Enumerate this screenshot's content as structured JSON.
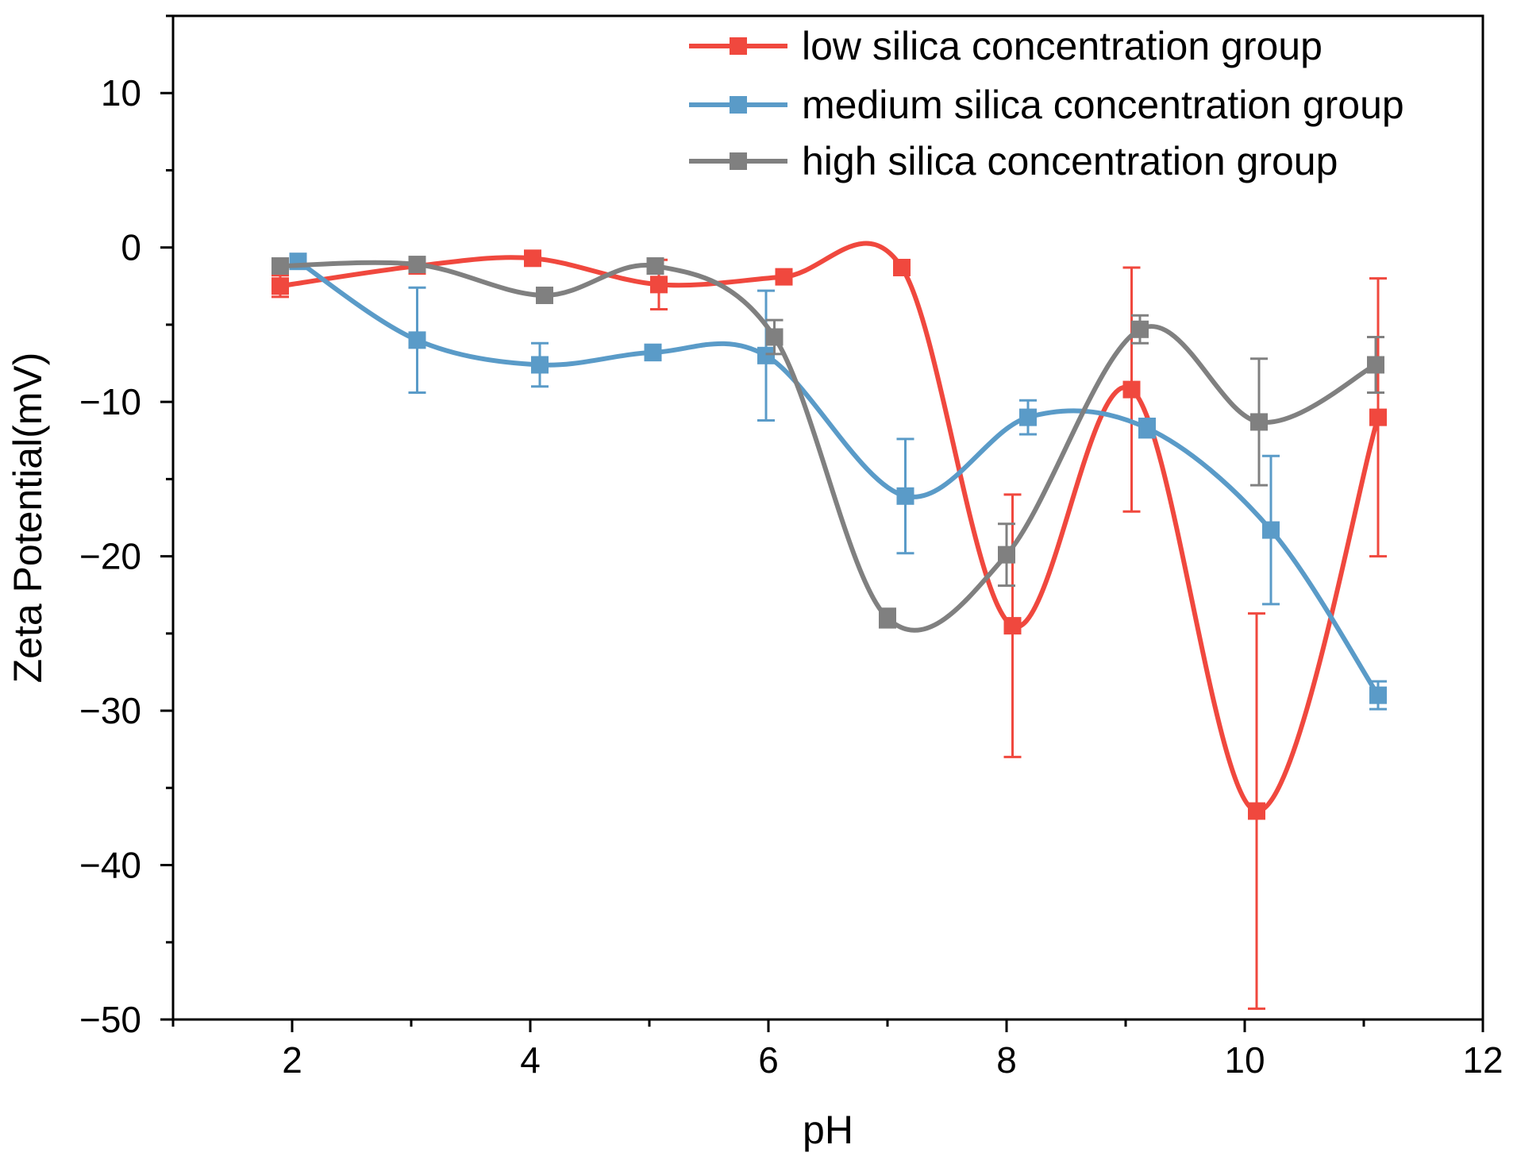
{
  "chart_data": {
    "type": "line",
    "title": "",
    "xlabel": "pH",
    "ylabel": "Zeta Potential(mV)",
    "xlim": [
      1,
      12
    ],
    "ylim": [
      -50,
      15
    ],
    "x_ticks": [
      2,
      4,
      6,
      8,
      10,
      12
    ],
    "x_tick_labels": [
      "2",
      "4",
      "6",
      "8",
      "10",
      "12"
    ],
    "y_ticks": [
      10,
      0,
      -10,
      -20,
      -30,
      -40,
      -50
    ],
    "y_tick_labels": [
      "10",
      "0",
      "−10",
      "−20",
      "−30",
      "−40",
      "−50"
    ],
    "legend_position": "top-right",
    "series": [
      {
        "name": "low silica concentration group",
        "color": "#f0483e",
        "x": [
          1.9,
          3.05,
          4.02,
          5.08,
          6.13,
          7.12,
          8.05,
          9.05,
          10.1,
          11.12
        ],
        "values": [
          -2.5,
          -1.2,
          -0.7,
          -2.4,
          -1.9,
          -1.3,
          -24.5,
          -9.2,
          -36.5,
          -11.0
        ],
        "error": [
          0.7,
          0.4,
          0.3,
          1.6,
          0.3,
          0.3,
          8.5,
          7.9,
          12.8,
          9.0
        ]
      },
      {
        "name": "medium silica concentration group",
        "color": "#5a9bc8",
        "x": [
          2.05,
          3.05,
          4.08,
          5.03,
          5.98,
          7.15,
          8.18,
          9.18,
          10.22,
          11.12
        ],
        "values": [
          -0.9,
          -6.0,
          -7.6,
          -6.8,
          -7.0,
          -16.1,
          -11.0,
          -11.7,
          -18.3,
          -29.0
        ],
        "error": [
          0.3,
          3.4,
          1.4,
          0.5,
          4.2,
          3.7,
          1.1,
          0.6,
          4.8,
          0.9
        ]
      },
      {
        "name": "high silica concentration group",
        "color": "#808080",
        "x": [
          1.9,
          3.05,
          4.12,
          5.05,
          6.05,
          7.0,
          8.0,
          9.12,
          10.12,
          11.1
        ],
        "values": [
          -1.2,
          -1.1,
          -3.1,
          -1.2,
          -5.8,
          -24.0,
          -19.9,
          -5.3,
          -11.3,
          -7.6
        ],
        "error": [
          0.3,
          0.3,
          0.3,
          0.3,
          1.1,
          0.6,
          2.0,
          0.9,
          4.1,
          1.8
        ]
      }
    ]
  }
}
